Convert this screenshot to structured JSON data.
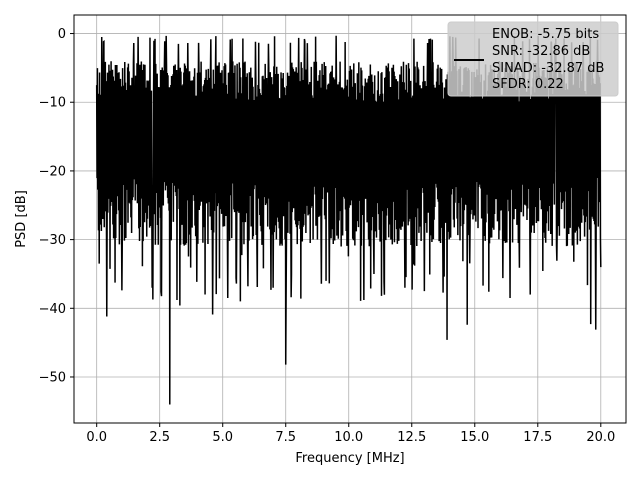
{
  "chart_data": {
    "type": "line",
    "title": "",
    "xlabel": "Frequency [MHz]",
    "ylabel": "PSD [dB]",
    "xlim": [
      -0.9,
      21.0
    ],
    "ylim": [
      -56.7,
      2.7
    ],
    "xticks": [
      0.0,
      2.5,
      5.0,
      7.5,
      10.0,
      12.5,
      15.0,
      17.5,
      20.0
    ],
    "xtick_labels": [
      "0.0",
      "2.5",
      "5.0",
      "7.5",
      "10.0",
      "12.5",
      "15.0",
      "17.5",
      "20.0"
    ],
    "yticks": [
      0,
      -10,
      -20,
      -30,
      -40,
      -50
    ],
    "ytick_labels": [
      "0",
      "−10",
      "−20",
      "−30",
      "−40",
      "−50"
    ],
    "grid": true,
    "legend_position": "top-right",
    "legend_lines": [
      "ENOB: -5.75 bits",
      "SNR: -32.86 dB",
      "SINAD: -32.87 dB",
      "SFDR: 0.22"
    ],
    "line_color": "#000000",
    "series": [
      {
        "note_range": "noise-like power spectral density spanning the band",
        "x_start": 0.0,
        "x_end": 20.0,
        "typical_band": [
          -28,
          -4
        ],
        "notable_points": [
          {
            "x": 0.0,
            "y": -7.5
          },
          {
            "x": 0.1,
            "y": -33.5
          },
          {
            "x": 0.2,
            "y": -0.5
          },
          {
            "x": 0.4,
            "y": -41.2
          },
          {
            "x": 1.0,
            "y": -37.4
          },
          {
            "x": 2.2,
            "y": -37.0
          },
          {
            "x": 2.55,
            "y": -37.6
          },
          {
            "x": 2.9,
            "y": -54.0
          },
          {
            "x": 3.3,
            "y": -39.6
          },
          {
            "x": 4.3,
            "y": -38.0
          },
          {
            "x": 4.6,
            "y": -40.9
          },
          {
            "x": 5.2,
            "y": -38.5
          },
          {
            "x": 5.7,
            "y": -39.0
          },
          {
            "x": 6.0,
            "y": -36.8
          },
          {
            "x": 6.3,
            "y": -1.2
          },
          {
            "x": 7.0,
            "y": -37.0
          },
          {
            "x": 7.5,
            "y": -48.2
          },
          {
            "x": 8.1,
            "y": -38.6
          },
          {
            "x": 9.1,
            "y": -36.0
          },
          {
            "x": 10.6,
            "y": -38.8
          },
          {
            "x": 11.0,
            "y": -35.0
          },
          {
            "x": 11.4,
            "y": -36.2
          },
          {
            "x": 13.0,
            "y": -37.5
          },
          {
            "x": 13.9,
            "y": -44.6
          },
          {
            "x": 14.7,
            "y": -42.4
          },
          {
            "x": 16.4,
            "y": -38.5
          },
          {
            "x": 17.2,
            "y": -38.0
          },
          {
            "x": 19.6,
            "y": -42.3
          },
          {
            "x": 19.8,
            "y": -43.1
          },
          {
            "x": 20.0,
            "y": -34.0
          }
        ]
      }
    ]
  }
}
